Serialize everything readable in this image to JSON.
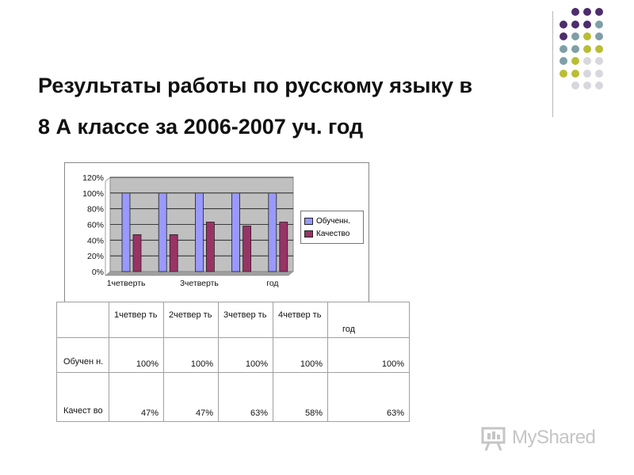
{
  "slide": {
    "title_line1": "Результаты работы по русскому языку в",
    "title_line2": "8 А классе за 2006-2007 уч. год"
  },
  "decor": {
    "dot_colors": {
      "purple": "#4d2d6b",
      "teal": "#7f9fa6",
      "olive": "#b9bd35",
      "gray": "#d7d7dd"
    }
  },
  "chart_data": {
    "type": "bar",
    "categories": [
      "1четверть",
      "2четверть",
      "3четверть",
      "4четверть",
      "год"
    ],
    "tick_labels_shown": [
      "1четверть",
      "3четверть",
      "год"
    ],
    "series": [
      {
        "name": "Обученн.",
        "color": "#9999ff",
        "values": [
          100,
          100,
          100,
          100,
          100
        ]
      },
      {
        "name": "Качество",
        "color": "#993366",
        "values": [
          47,
          47,
          63,
          58,
          63
        ]
      }
    ],
    "yticks": [
      "0%",
      "20%",
      "40%",
      "60%",
      "80%",
      "100%",
      "120%"
    ],
    "ylim": [
      0,
      120
    ],
    "grid": true,
    "plot_background": "#c0c0c0",
    "legend_position": "right"
  },
  "table": {
    "headers": [
      "1четвер ть",
      "2четвер ть",
      "3четвер ть",
      "4четвер ть",
      "год"
    ],
    "rows": [
      {
        "label": "Обучен н.",
        "values": [
          "100%",
          "100%",
          "100%",
          "100%",
          "100%"
        ]
      },
      {
        "label": "Качест во",
        "values": [
          "47%",
          "47%",
          "63%",
          "58%",
          "63%"
        ]
      }
    ]
  },
  "watermark": {
    "text": "MyShared"
  }
}
